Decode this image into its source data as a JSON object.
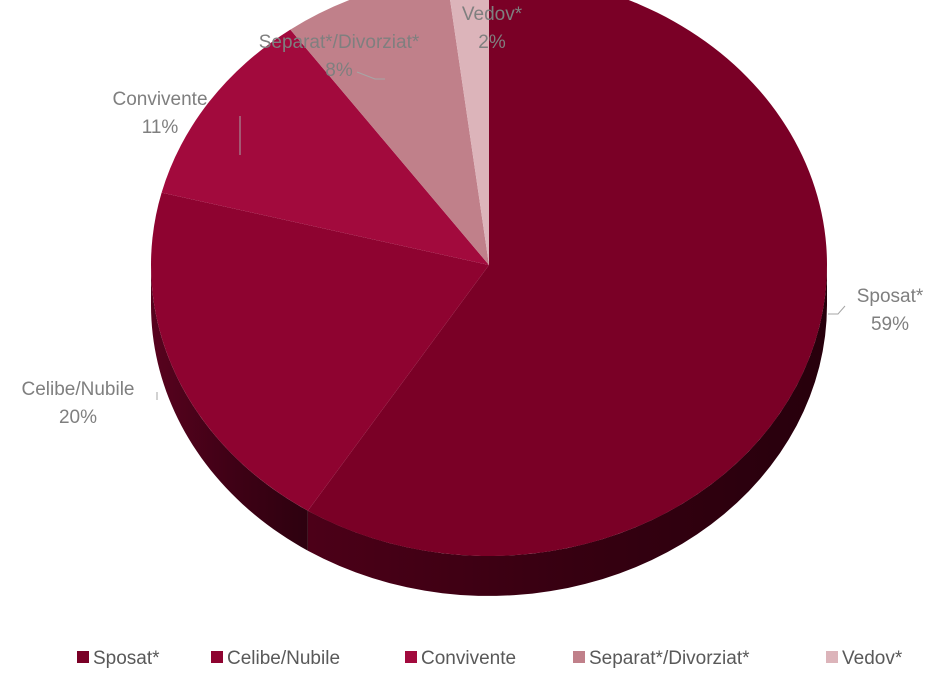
{
  "chart_data": {
    "type": "pie",
    "title": "",
    "categories": [
      "Sposat*",
      "Celibe/Nubile",
      "Convivente",
      "Separat*/Divorziat*",
      "Vedov*"
    ],
    "values": [
      59,
      20,
      11,
      8,
      2
    ],
    "data_labels": [
      "59%",
      "20%",
      "11%",
      "8%",
      "2%"
    ],
    "colors": [
      "#7a0026",
      "#8e0330",
      "#a20a3d",
      "#c0808a",
      "#dcb4ba"
    ],
    "style": "3d-tilted",
    "legend_position": "bottom"
  }
}
